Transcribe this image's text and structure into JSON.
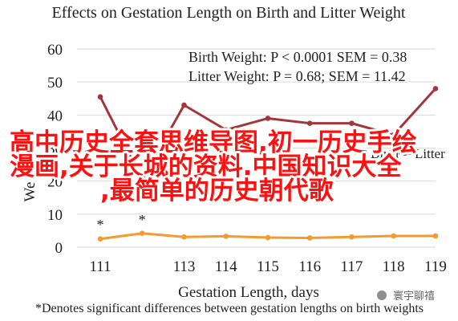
{
  "chart_data": {
    "type": "line",
    "title": "Effects on Gestation Length on Birth and Litter Weight",
    "xlabel": "Gestation Length, days",
    "ylabel": "",
    "x": [
      111,
      112,
      113,
      114,
      115,
      116,
      117,
      118,
      119
    ],
    "x_tick_labels": [
      "111",
      "113",
      "114",
      "115",
      "116",
      "117",
      "118",
      "119"
    ],
    "y_ticks": [
      "0",
      "10",
      "20",
      "30",
      "40",
      "50",
      "60"
    ],
    "ylim": [
      0,
      60
    ],
    "grid": true,
    "legend_position": "bottom-right",
    "series": [
      {
        "name": "Litter",
        "values": [
          45.5,
          20.5,
          43.0,
          35.5,
          39.0,
          37.5,
          37.5,
          34.0,
          48.0
        ],
        "color": "#a2363b"
      },
      {
        "name": "Birth",
        "values": [
          2.5,
          4.2,
          3.1,
          3.3,
          2.9,
          2.8,
          3.1,
          3.4,
          3.4
        ],
        "color": "#f39b2f"
      }
    ],
    "annotations": [
      "Birth Weight: P < 0.0001 SEM = 0.38",
      "Litter Weight: P = 0.68; SEM = 11.42",
      "*Denotes significant differences between gestation lengths on birth weights"
    ],
    "star_indices": [
      0,
      1
    ],
    "footnote": "*Denotes significant differences between gestation lengths on birth weights"
  },
  "overlay": {
    "line1": "高中历史全套思维导图,初一历史手绘",
    "line2": "漫画,关于长城的资料,中国知识大全",
    "line3": ",最简单的历史朝代歌"
  },
  "legend": {
    "birth_label": "Birth",
    "litter_label": "Litter"
  },
  "watermark": {
    "text": "寰宇聊禧"
  }
}
